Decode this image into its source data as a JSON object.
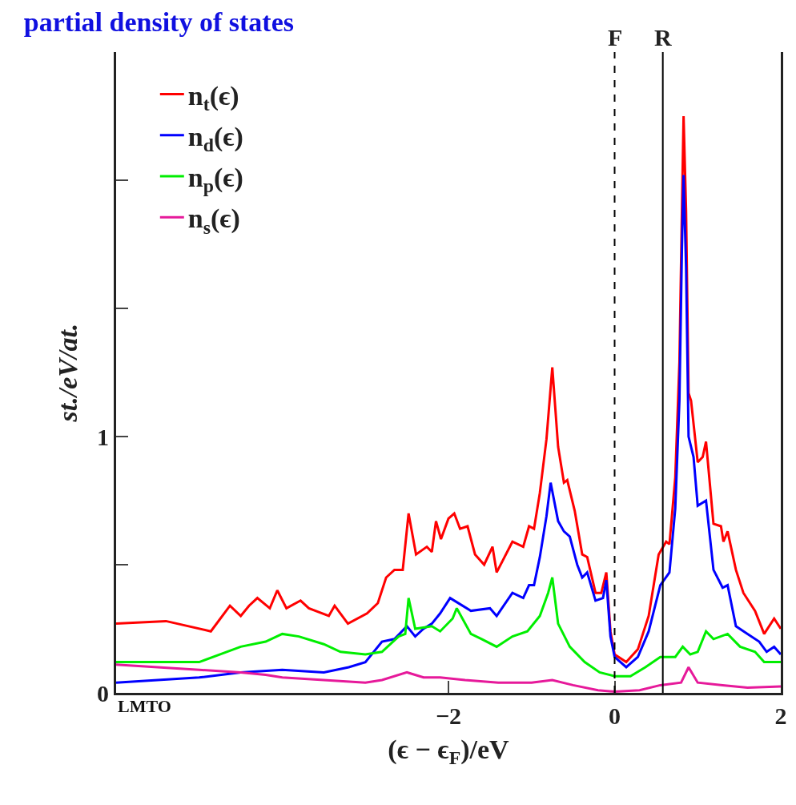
{
  "chart_data": {
    "type": "line",
    "title": "partial density of states",
    "xlabel": "(ϵ − ϵ$_{F}$)/eV",
    "ylabel": "st./eV/at.",
    "xlim": [
      -6,
      2
    ],
    "ylim": [
      0,
      2.5
    ],
    "xticks": [
      {
        "value": -2,
        "label": "−2"
      },
      0,
      2
    ],
    "yticks": [
      0,
      {
        "value": 0.5,
        "label": null
      },
      1,
      {
        "value": 1.5,
        "label": null
      },
      {
        "value": 2,
        "label": null
      }
    ],
    "legend": "top left",
    "marker": "none",
    "line_style": "solid",
    "ref_lines": [
      {
        "axis": "x",
        "value": 0,
        "label": "F",
        "line_style": "dashed",
        "color": "#000000"
      },
      {
        "axis": "x",
        "value": 0.58,
        "label": "R",
        "line_style": "solid",
        "color": "#000000"
      }
    ],
    "annotations": [
      "LMTO"
    ],
    "series": [
      {
        "name": "n$_{t}$(ϵ)",
        "color": "#ff0000",
        "x": [
          -6,
          -5.4,
          -4.86,
          -4.63,
          -4.5,
          -4.4,
          -4.3,
          -4.15,
          -4.06,
          -3.95,
          -3.78,
          -3.68,
          -3.44,
          -3.37,
          -3.21,
          -2.98,
          -2.85,
          -2.75,
          -2.65,
          -2.55,
          -2.48,
          -2.39,
          -2.26,
          -2.2,
          -2.15,
          -2.09,
          -2.0,
          -1.93,
          -1.86,
          -1.77,
          -1.68,
          -1.57,
          -1.47,
          -1.42,
          -1.23,
          -1.1,
          -1.03,
          -0.97,
          -0.9,
          -0.82,
          -0.75,
          -0.68,
          -0.61,
          -0.57,
          -0.48,
          -0.39,
          -0.33,
          -0.23,
          -0.16,
          -0.1,
          -0.05,
          0.0,
          0.14,
          0.28,
          0.41,
          0.53,
          0.62,
          0.66,
          0.73,
          0.78,
          0.81,
          0.83,
          0.86,
          0.89,
          0.92,
          1.0,
          1.06,
          1.1,
          1.19,
          1.28,
          1.31,
          1.36,
          1.46,
          1.55,
          1.69,
          1.8,
          1.92,
          2.0
        ],
        "values": [
          0.27,
          0.28,
          0.24,
          0.34,
          0.3,
          0.34,
          0.37,
          0.33,
          0.4,
          0.33,
          0.36,
          0.33,
          0.3,
          0.34,
          0.27,
          0.31,
          0.35,
          0.45,
          0.48,
          0.48,
          0.7,
          0.54,
          0.57,
          0.55,
          0.67,
          0.6,
          0.68,
          0.7,
          0.64,
          0.65,
          0.54,
          0.5,
          0.57,
          0.47,
          0.59,
          0.57,
          0.65,
          0.64,
          0.78,
          0.99,
          1.27,
          0.96,
          0.82,
          0.83,
          0.71,
          0.54,
          0.53,
          0.39,
          0.39,
          0.47,
          0.24,
          0.15,
          0.12,
          0.17,
          0.3,
          0.54,
          0.59,
          0.58,
          0.84,
          1.29,
          1.88,
          2.25,
          1.88,
          1.17,
          1.14,
          0.9,
          0.92,
          0.98,
          0.66,
          0.65,
          0.59,
          0.63,
          0.48,
          0.39,
          0.32,
          0.23,
          0.29,
          0.25
        ]
      },
      {
        "name": "n$_{d}$(ϵ)",
        "color": "#0000ff",
        "x": [
          -6,
          -5,
          -4.5,
          -4,
          -3.5,
          -3.2,
          -3,
          -2.8,
          -2.65,
          -2.5,
          -2.4,
          -2.3,
          -2.2,
          -2.1,
          -1.98,
          -1.73,
          -1.5,
          -1.42,
          -1.23,
          -1.1,
          -1.03,
          -0.97,
          -0.9,
          -0.82,
          -0.77,
          -0.68,
          -0.61,
          -0.54,
          -0.45,
          -0.39,
          -0.33,
          -0.23,
          -0.14,
          -0.1,
          -0.05,
          0.0,
          0.14,
          0.28,
          0.41,
          0.55,
          0.66,
          0.73,
          0.78,
          0.81,
          0.83,
          0.86,
          0.89,
          0.95,
          1.0,
          1.1,
          1.19,
          1.3,
          1.36,
          1.46,
          1.6,
          1.74,
          1.83,
          1.92,
          2.0
        ],
        "values": [
          0.04,
          0.06,
          0.08,
          0.09,
          0.08,
          0.1,
          0.12,
          0.2,
          0.21,
          0.26,
          0.22,
          0.25,
          0.27,
          0.31,
          0.37,
          0.32,
          0.33,
          0.3,
          0.39,
          0.37,
          0.42,
          0.42,
          0.53,
          0.69,
          0.82,
          0.67,
          0.63,
          0.61,
          0.5,
          0.45,
          0.47,
          0.36,
          0.37,
          0.44,
          0.22,
          0.14,
          0.1,
          0.14,
          0.24,
          0.42,
          0.47,
          0.72,
          1.14,
          1.73,
          2.02,
          1.66,
          1.0,
          0.92,
          0.73,
          0.75,
          0.48,
          0.41,
          0.42,
          0.26,
          0.23,
          0.2,
          0.16,
          0.18,
          0.15
        ]
      },
      {
        "name": "n$_{p}$(ϵ)",
        "color": "#00ee00",
        "x": [
          -6,
          -5.5,
          -5,
          -4.5,
          -4.2,
          -4,
          -3.8,
          -3.5,
          -3.3,
          -3,
          -2.8,
          -2.6,
          -2.52,
          -2.48,
          -2.4,
          -2.2,
          -2.1,
          -1.95,
          -1.9,
          -1.73,
          -1.6,
          -1.42,
          -1.23,
          -1.05,
          -0.9,
          -0.8,
          -0.75,
          -0.68,
          -0.54,
          -0.36,
          -0.18,
          0.0,
          0.19,
          0.37,
          0.55,
          0.73,
          0.82,
          0.91,
          1.0,
          1.1,
          1.19,
          1.36,
          1.51,
          1.69,
          1.8,
          1.92,
          2.0
        ],
        "values": [
          0.12,
          0.12,
          0.12,
          0.18,
          0.2,
          0.23,
          0.22,
          0.19,
          0.16,
          0.15,
          0.16,
          0.22,
          0.23,
          0.37,
          0.25,
          0.26,
          0.24,
          0.29,
          0.33,
          0.23,
          0.21,
          0.18,
          0.22,
          0.24,
          0.3,
          0.39,
          0.45,
          0.27,
          0.18,
          0.12,
          0.08,
          0.065,
          0.065,
          0.1,
          0.14,
          0.14,
          0.18,
          0.15,
          0.16,
          0.24,
          0.21,
          0.23,
          0.18,
          0.16,
          0.12,
          0.12,
          0.12
        ]
      },
      {
        "name": "n$_{s}$(ϵ)",
        "color": "#e6199a",
        "x": [
          -6,
          -5.5,
          -5,
          -4.5,
          -4.2,
          -4,
          -3.5,
          -3,
          -2.8,
          -2.5,
          -2.3,
          -2.1,
          -1.8,
          -1.4,
          -1,
          -0.75,
          -0.5,
          -0.2,
          0,
          0.3,
          0.55,
          0.8,
          0.89,
          1.0,
          1.3,
          1.6,
          2.0
        ],
        "values": [
          0.11,
          0.1,
          0.09,
          0.08,
          0.07,
          0.06,
          0.05,
          0.04,
          0.05,
          0.08,
          0.06,
          0.06,
          0.05,
          0.04,
          0.04,
          0.05,
          0.03,
          0.01,
          0.005,
          0.01,
          0.03,
          0.04,
          0.1,
          0.04,
          0.03,
          0.02,
          0.025
        ]
      }
    ]
  }
}
